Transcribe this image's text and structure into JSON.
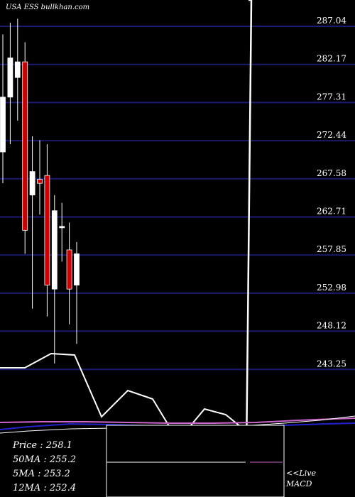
{
  "header": {
    "watermark": "USA ESS bullkhan.com"
  },
  "stats": {
    "price": "Price   : 258.1",
    "ma50": "50MA : 255.2",
    "ma5": "5MA : 253.2",
    "ma12": "12MA : 252.4"
  },
  "macd": {
    "live": "<<Live",
    "label": "MACD"
  },
  "colors": {
    "background": "#000000",
    "grid": "#1a1a6e",
    "up": "#ffffff",
    "down": "#cc0000",
    "ma_short": "#ffffff",
    "ma_blue": "#2222cc",
    "ma_pink": "#cc66cc"
  },
  "chart_data": {
    "type": "candlestick",
    "y_ticks": [
      "287.04",
      "282.17",
      "277.31",
      "272.44",
      "267.58",
      "262.71",
      "257.85",
      "252.98",
      "248.12",
      "243.25"
    ],
    "ylim": [
      239.0,
      290.0
    ],
    "candles": [
      {
        "o": 271.0,
        "h": 286.0,
        "l": 267.0,
        "c": 278.0
      },
      {
        "o": 278.0,
        "h": 287.5,
        "l": 272.0,
        "c": 283.0
      },
      {
        "o": 280.5,
        "h": 288.0,
        "l": 275.0,
        "c": 282.5
      },
      {
        "o": 282.5,
        "h": 285.0,
        "l": 258.0,
        "c": 261.0
      },
      {
        "o": 265.5,
        "h": 273.0,
        "l": 251.0,
        "c": 268.5
      },
      {
        "o": 267.5,
        "h": 272.5,
        "l": 263.0,
        "c": 267.0
      },
      {
        "o": 268.0,
        "h": 272.0,
        "l": 250.0,
        "c": 254.0
      },
      {
        "o": 253.5,
        "h": 265.5,
        "l": 244.0,
        "c": 263.5
      },
      {
        "o": 261.5,
        "h": 264.5,
        "l": 257.0,
        "c": 261.5
      },
      {
        "o": 258.5,
        "h": 262.0,
        "l": 249.0,
        "c": 253.5
      },
      {
        "o": 254.0,
        "h": 259.5,
        "l": 246.5,
        "c": 258.0
      }
    ]
  }
}
